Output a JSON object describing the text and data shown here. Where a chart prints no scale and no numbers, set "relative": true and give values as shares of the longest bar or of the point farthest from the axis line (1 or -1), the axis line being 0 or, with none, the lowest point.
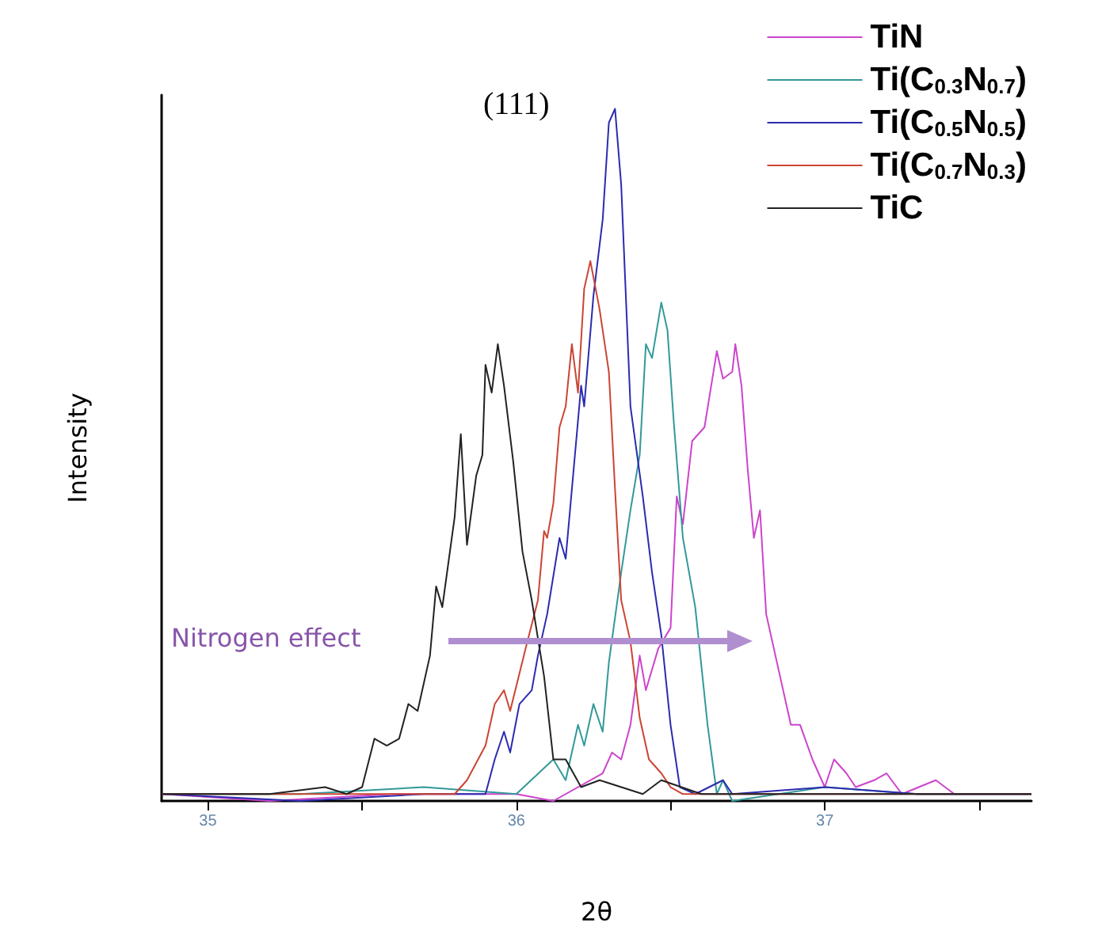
{
  "chart_data": {
    "type": "line",
    "xlabel": "2θ",
    "ylabel": "Intensity",
    "relative": true,
    "xlim": [
      34.85,
      37.67
    ],
    "xticks": [
      35,
      {
        "value": 35.5,
        "label": null
      },
      36,
      {
        "value": 36.5,
        "label": null
      },
      37,
      {
        "value": 37.5,
        "label": null
      }
    ],
    "legend": "top right",
    "annotations": [
      "(111)",
      "Nitrogen effect"
    ],
    "series": [
      {
        "name": "TiN",
        "color": "#cc44cc",
        "x": [
          34.85,
          35.2,
          35.6,
          36.0,
          36.12,
          36.28,
          36.31,
          36.34,
          36.37,
          36.4,
          36.42,
          36.46,
          36.5,
          36.52,
          36.54,
          36.57,
          36.61,
          36.65,
          36.67,
          36.7,
          36.71,
          36.73,
          36.75,
          36.77,
          36.79,
          36.81,
          36.85,
          36.89,
          36.92,
          36.96,
          37.0,
          37.03,
          37.07,
          37.1,
          37.16,
          37.2,
          37.25,
          37.36,
          37.42,
          37.55,
          37.67
        ],
        "values": [
          0.01,
          0.0,
          0.01,
          0.01,
          0.0,
          0.04,
          0.07,
          0.06,
          0.11,
          0.21,
          0.16,
          0.22,
          0.25,
          0.44,
          0.4,
          0.52,
          0.54,
          0.65,
          0.61,
          0.62,
          0.66,
          0.6,
          0.48,
          0.38,
          0.42,
          0.27,
          0.19,
          0.11,
          0.11,
          0.06,
          0.02,
          0.06,
          0.04,
          0.02,
          0.03,
          0.04,
          0.01,
          0.03,
          0.01,
          0.01,
          0.01
        ]
      },
      {
        "name": "Ti(C$_{0.3}$N$_{0.7}$)",
        "color": "#339999",
        "x": [
          34.85,
          35.3,
          35.7,
          36.0,
          36.12,
          36.16,
          36.2,
          36.22,
          36.25,
          36.28,
          36.3,
          36.34,
          36.37,
          36.4,
          36.42,
          36.44,
          36.47,
          36.49,
          36.51,
          36.54,
          36.58,
          36.62,
          36.65,
          36.67,
          36.7,
          37.0,
          37.3,
          37.67
        ],
        "values": [
          0.01,
          0.01,
          0.02,
          0.01,
          0.06,
          0.03,
          0.11,
          0.08,
          0.14,
          0.1,
          0.2,
          0.33,
          0.42,
          0.5,
          0.66,
          0.64,
          0.72,
          0.68,
          0.55,
          0.38,
          0.28,
          0.11,
          0.01,
          0.03,
          0.0,
          0.02,
          0.01,
          0.01
        ]
      },
      {
        "name": "Ti(C$_{0.5}$N$_{0.5}$)",
        "color": "#2b2bb0",
        "x": [
          34.85,
          35.3,
          35.7,
          35.9,
          35.93,
          35.96,
          35.98,
          36.01,
          36.05,
          36.07,
          36.1,
          36.14,
          36.16,
          36.19,
          36.21,
          36.22,
          36.25,
          36.28,
          36.3,
          36.32,
          36.34,
          36.37,
          36.41,
          36.44,
          36.47,
          36.5,
          36.53,
          36.58,
          36.67,
          36.7,
          37.0,
          37.3,
          37.67
        ],
        "values": [
          0.01,
          0.0,
          0.01,
          0.01,
          0.06,
          0.1,
          0.07,
          0.14,
          0.16,
          0.21,
          0.27,
          0.38,
          0.35,
          0.5,
          0.6,
          0.57,
          0.73,
          0.84,
          0.98,
          1.0,
          0.89,
          0.57,
          0.44,
          0.33,
          0.24,
          0.11,
          0.02,
          0.01,
          0.03,
          0.01,
          0.02,
          0.01,
          0.01
        ]
      },
      {
        "name": "Ti(C$_{0.7}$N$_{0.3}$)",
        "color": "#cc4433",
        "x": [
          34.85,
          35.3,
          35.6,
          35.8,
          35.84,
          35.9,
          35.93,
          35.96,
          35.98,
          36.03,
          36.07,
          36.09,
          36.1,
          36.12,
          36.14,
          36.16,
          36.18,
          36.2,
          36.22,
          36.24,
          36.27,
          36.3,
          36.32,
          36.34,
          36.37,
          36.4,
          36.43,
          36.47,
          36.5,
          36.54,
          37.0,
          37.67
        ],
        "values": [
          0.01,
          0.01,
          0.01,
          0.01,
          0.03,
          0.08,
          0.14,
          0.16,
          0.13,
          0.22,
          0.29,
          0.39,
          0.38,
          0.43,
          0.54,
          0.57,
          0.66,
          0.59,
          0.74,
          0.78,
          0.71,
          0.62,
          0.45,
          0.29,
          0.23,
          0.12,
          0.06,
          0.04,
          0.02,
          0.01,
          0.01,
          0.01
        ]
      },
      {
        "name": "TiC",
        "color": "#222222",
        "x": [
          34.85,
          35.2,
          35.38,
          35.45,
          35.5,
          35.54,
          35.58,
          35.62,
          35.65,
          35.68,
          35.72,
          35.74,
          35.76,
          35.8,
          35.82,
          35.84,
          35.87,
          35.89,
          35.9,
          35.92,
          35.94,
          35.96,
          35.99,
          36.02,
          36.05,
          36.09,
          36.12,
          36.16,
          36.21,
          36.27,
          36.41,
          36.47,
          36.6,
          37.0,
          37.67
        ],
        "values": [
          0.01,
          0.01,
          0.02,
          0.01,
          0.02,
          0.09,
          0.08,
          0.09,
          0.14,
          0.13,
          0.21,
          0.31,
          0.28,
          0.41,
          0.53,
          0.37,
          0.47,
          0.5,
          0.63,
          0.59,
          0.66,
          0.6,
          0.49,
          0.36,
          0.29,
          0.18,
          0.06,
          0.06,
          0.02,
          0.03,
          0.01,
          0.03,
          0.01,
          0.01,
          0.01
        ]
      }
    ]
  }
}
